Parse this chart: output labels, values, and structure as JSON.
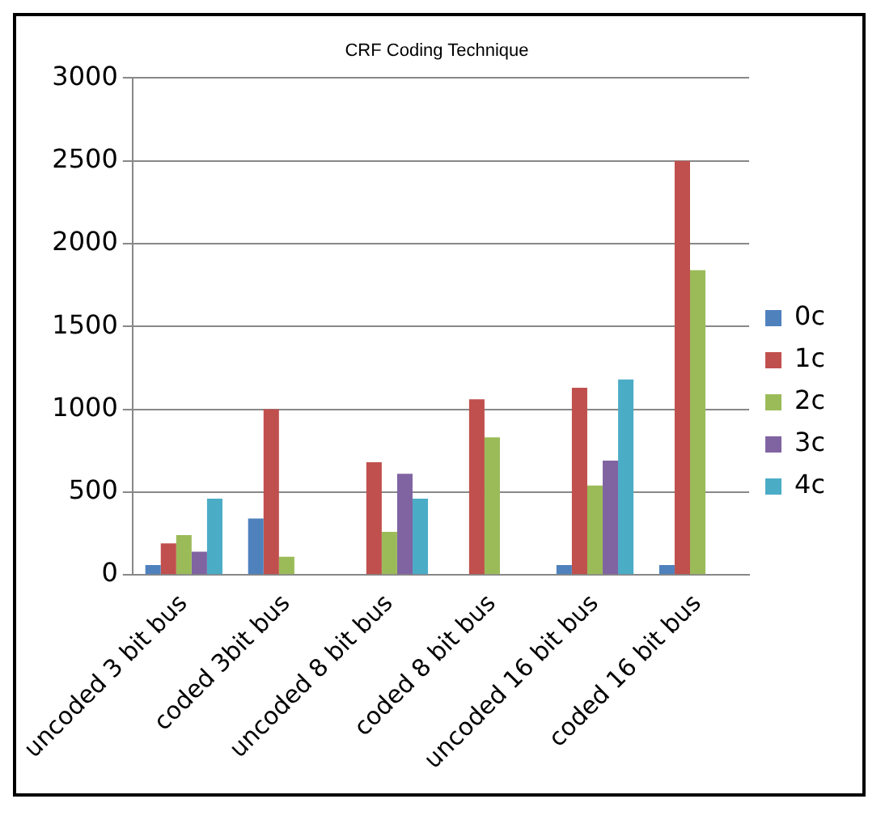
{
  "chart_data": {
    "type": "bar",
    "title": "CRF Coding Technique",
    "categories": [
      "uncoded 3 bit bus",
      "coded 3bit bus",
      "uncoded 8 bit bus",
      "coded 8 bit bus",
      "uncoded 16 bit bus",
      "coded 16 bit bus"
    ],
    "series": [
      {
        "name": "0c",
        "color": "#4f81bd",
        "values": [
          60,
          340,
          null,
          null,
          60,
          60
        ]
      },
      {
        "name": "1c",
        "color": "#c0504d",
        "values": [
          190,
          1000,
          680,
          1060,
          1130,
          2500
        ]
      },
      {
        "name": "2c",
        "color": "#9bbb59",
        "values": [
          240,
          110,
          260,
          830,
          540,
          1840
        ]
      },
      {
        "name": "3c",
        "color": "#8064a2",
        "values": [
          140,
          null,
          610,
          null,
          690,
          null
        ]
      },
      {
        "name": "4c",
        "color": "#4bacc6",
        "values": [
          460,
          null,
          460,
          null,
          1180,
          null
        ]
      }
    ],
    "ylim": [
      0,
      3000
    ],
    "yticks": [
      0,
      500,
      1000,
      1500,
      2000,
      2500,
      3000
    ],
    "grid": "y",
    "legend": "right"
  }
}
